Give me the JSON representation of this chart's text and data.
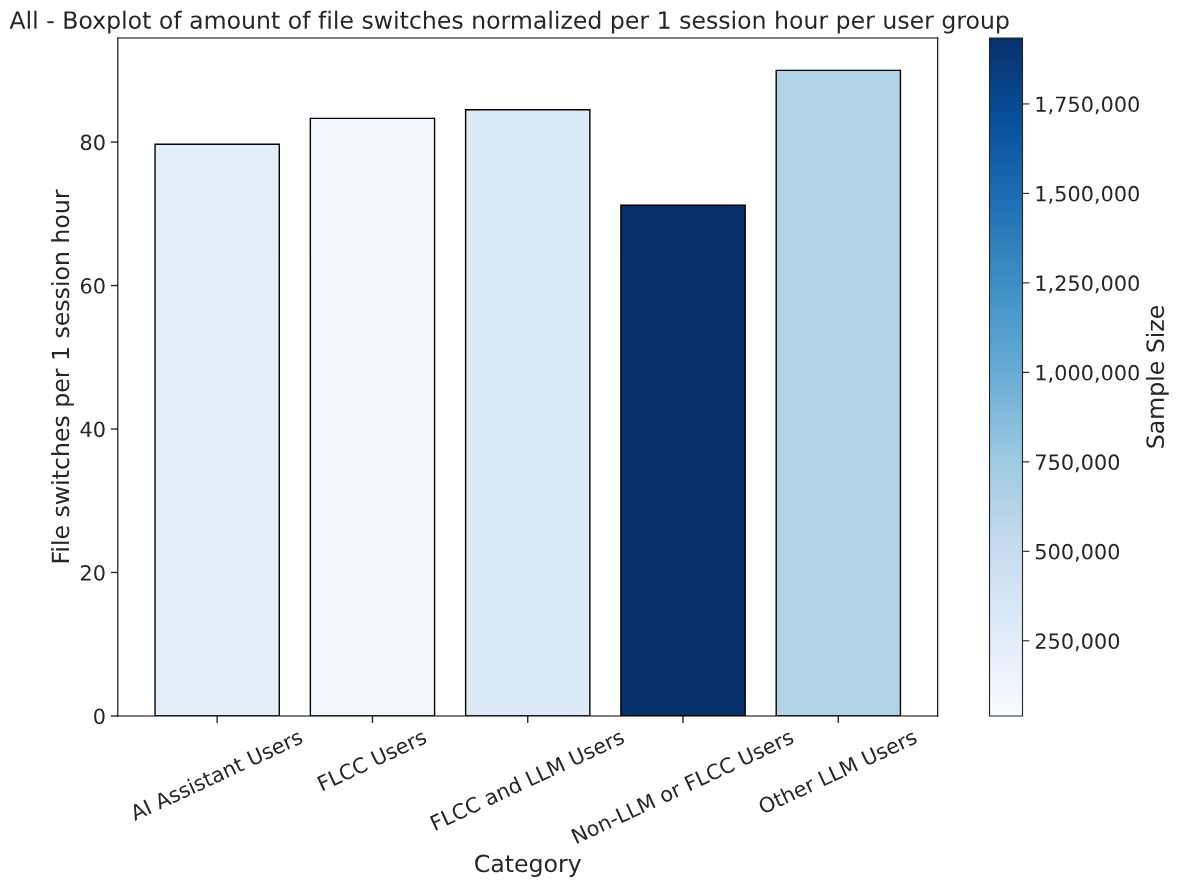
{
  "chart_data": {
    "type": "bar",
    "title": "All - Boxplot of amount of file switches normalized per 1 session hour per user group",
    "xlabel": "Category",
    "ylabel": "File switches per 1 session hour",
    "clabel": "Sample Size",
    "categories": [
      "AI Assistant Users",
      "FLCC Users",
      "FLCC and LLM Users",
      "Non-LLM or FLCC Users",
      "Other LLM Users"
    ],
    "values": [
      79.7,
      83.3,
      84.5,
      71.2,
      90.0
    ],
    "colors": [
      "#e3eef9",
      "#f2f7fd",
      "#dce9f6",
      "#08306b",
      "#b3d3e8"
    ],
    "ylim": [
      0,
      94.5
    ],
    "yticks": [
      0,
      20,
      40,
      60,
      80
    ],
    "clim": [
      40000,
      1934000
    ],
    "cticks": [
      {
        "value": 250000,
        "label": "250,000"
      },
      {
        "value": 500000,
        "label": "500,000"
      },
      {
        "value": 750000,
        "label": "750,000"
      },
      {
        "value": 1000000,
        "label": "1,000,000"
      },
      {
        "value": 1250000,
        "label": "1,250,000"
      },
      {
        "value": 1500000,
        "label": "1,500,000"
      },
      {
        "value": 1750000,
        "label": "1,750,000"
      }
    ],
    "grid": false,
    "legend": false
  }
}
